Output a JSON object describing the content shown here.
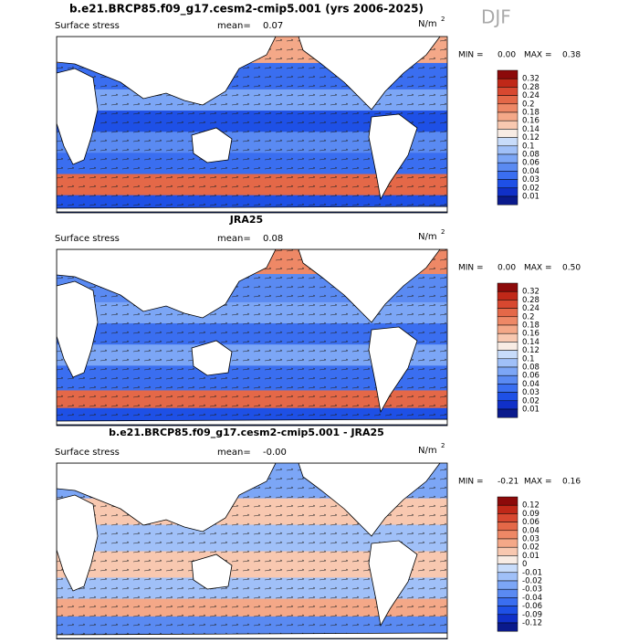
{
  "title": "b.e21.BRCP85.f09_g17.cesm2-cmip5.001 (yrs 2006-2025)",
  "season": "DJF",
  "panels": [
    {
      "variable": "Surface stress",
      "mean_label": "mean=",
      "mean": "0.07",
      "units_base": "N/m",
      "units_exp": "2",
      "min_label": "MIN =",
      "min": "0.00",
      "max_label": "MAX =",
      "max": "0.38",
      "colorbar_labels": [
        "0.32",
        "0.28",
        "0.24",
        "0.2",
        "0.18",
        "0.16",
        "0.14",
        "0.12",
        "0.1",
        "0.08",
        "0.06",
        "0.04",
        "0.03",
        "0.02",
        "0.01"
      ]
    },
    {
      "title": "JRA25",
      "variable": "Surface stress",
      "mean_label": "mean=",
      "mean": "0.08",
      "units_base": "N/m",
      "units_exp": "2",
      "min_label": "MIN =",
      "min": "0.00",
      "max_label": "MAX =",
      "max": "0.50",
      "colorbar_labels": [
        "0.32",
        "0.28",
        "0.24",
        "0.2",
        "0.18",
        "0.16",
        "0.14",
        "0.12",
        "0.1",
        "0.08",
        "0.06",
        "0.04",
        "0.03",
        "0.02",
        "0.01"
      ]
    },
    {
      "title": "b.e21.BRCP85.f09_g17.cesm2-cmip5.001 - JRA25",
      "variable": "Surface stress",
      "mean_label": "mean=",
      "mean": "-0.00",
      "units_base": "N/m",
      "units_exp": "2",
      "min_label": "MIN =",
      "min": "-0.21",
      "max_label": "MAX =",
      "max": "0.16",
      "colorbar_labels": [
        "0.12",
        "0.09",
        "0.06",
        "0.04",
        "0.03",
        "0.02",
        "0.01",
        "0",
        "-0.01",
        "-0.02",
        "-0.03",
        "-0.04",
        "-0.06",
        "-0.09",
        "-0.12"
      ]
    }
  ]
}
